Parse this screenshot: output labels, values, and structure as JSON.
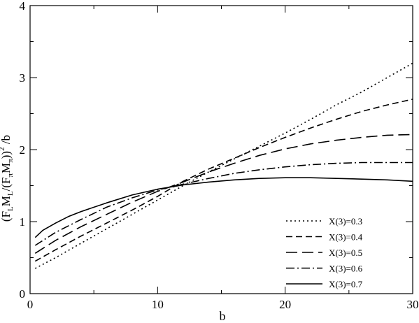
{
  "chart_data": {
    "type": "line",
    "title": "",
    "xlabel": "b",
    "ylabel_parts": {
      "open": "(F",
      "sub1": "L",
      "mid1": "M",
      "sub2": "L",
      "mid2": "/(F",
      "sub3": "π",
      "mid3": "M",
      "sub4": "π",
      "close": "))",
      "sup": "2",
      "tail": " /b"
    },
    "xlim": [
      0,
      30
    ],
    "ylim": [
      0,
      4
    ],
    "x_ticks": [
      0,
      10,
      20,
      30
    ],
    "y_ticks": [
      0,
      1,
      2,
      3,
      4
    ],
    "grid": false,
    "legend_position": "bottom-right",
    "series": [
      {
        "name": "X(3)=0.3",
        "dash": "dotted",
        "points": [
          [
            0.4,
            0.35
          ],
          [
            2,
            0.5
          ],
          [
            4,
            0.7
          ],
          [
            6,
            0.9
          ],
          [
            8,
            1.1
          ],
          [
            10,
            1.3
          ],
          [
            12,
            1.5
          ],
          [
            14,
            1.69
          ],
          [
            16,
            1.87
          ],
          [
            18,
            2.05
          ],
          [
            20,
            2.23
          ],
          [
            22,
            2.42
          ],
          [
            24,
            2.62
          ],
          [
            26,
            2.8
          ],
          [
            28,
            3.0
          ],
          [
            30,
            3.2
          ]
        ]
      },
      {
        "name": "X(3)=0.4",
        "dash": "short-dash",
        "points": [
          [
            0.4,
            0.45
          ],
          [
            2,
            0.61
          ],
          [
            4,
            0.8
          ],
          [
            6,
            0.98
          ],
          [
            8,
            1.16
          ],
          [
            10,
            1.35
          ],
          [
            12,
            1.56
          ],
          [
            14,
            1.73
          ],
          [
            16,
            1.88
          ],
          [
            18,
            2.03
          ],
          [
            20,
            2.17
          ],
          [
            22,
            2.3
          ],
          [
            24,
            2.42
          ],
          [
            26,
            2.53
          ],
          [
            28,
            2.62
          ],
          [
            30,
            2.7
          ]
        ]
      },
      {
        "name": "X(3)=0.5",
        "dash": "long-dash",
        "points": [
          [
            0.4,
            0.56
          ],
          [
            2,
            0.74
          ],
          [
            4,
            0.93
          ],
          [
            6,
            1.1
          ],
          [
            8,
            1.27
          ],
          [
            10,
            1.42
          ],
          [
            12,
            1.55
          ],
          [
            14,
            1.69
          ],
          [
            16,
            1.81
          ],
          [
            18,
            1.92
          ],
          [
            20,
            2.01
          ],
          [
            22,
            2.08
          ],
          [
            24,
            2.13
          ],
          [
            26,
            2.17
          ],
          [
            28,
            2.2
          ],
          [
            30,
            2.21
          ]
        ]
      },
      {
        "name": "X(3)=0.6",
        "dash": "dash-dot",
        "points": [
          [
            0.4,
            0.67
          ],
          [
            2,
            0.85
          ],
          [
            4,
            1.03
          ],
          [
            6,
            1.2
          ],
          [
            8,
            1.33
          ],
          [
            10,
            1.44
          ],
          [
            12,
            1.52
          ],
          [
            14,
            1.6
          ],
          [
            16,
            1.67
          ],
          [
            18,
            1.72
          ],
          [
            20,
            1.76
          ],
          [
            22,
            1.79
          ],
          [
            24,
            1.81
          ],
          [
            26,
            1.82
          ],
          [
            28,
            1.82
          ],
          [
            30,
            1.82
          ]
        ]
      },
      {
        "name": "X(3)=0.7",
        "dash": "solid",
        "points": [
          [
            0.4,
            0.78
          ],
          [
            1,
            0.88
          ],
          [
            2,
            0.98
          ],
          [
            3,
            1.07
          ],
          [
            4,
            1.14
          ],
          [
            6,
            1.26
          ],
          [
            8,
            1.37
          ],
          [
            10,
            1.45
          ],
          [
            12,
            1.51
          ],
          [
            14,
            1.55
          ],
          [
            16,
            1.58
          ],
          [
            18,
            1.6
          ],
          [
            20,
            1.61
          ],
          [
            22,
            1.61
          ],
          [
            24,
            1.6
          ],
          [
            26,
            1.59
          ],
          [
            28,
            1.58
          ],
          [
            30,
            1.56
          ]
        ]
      }
    ]
  }
}
